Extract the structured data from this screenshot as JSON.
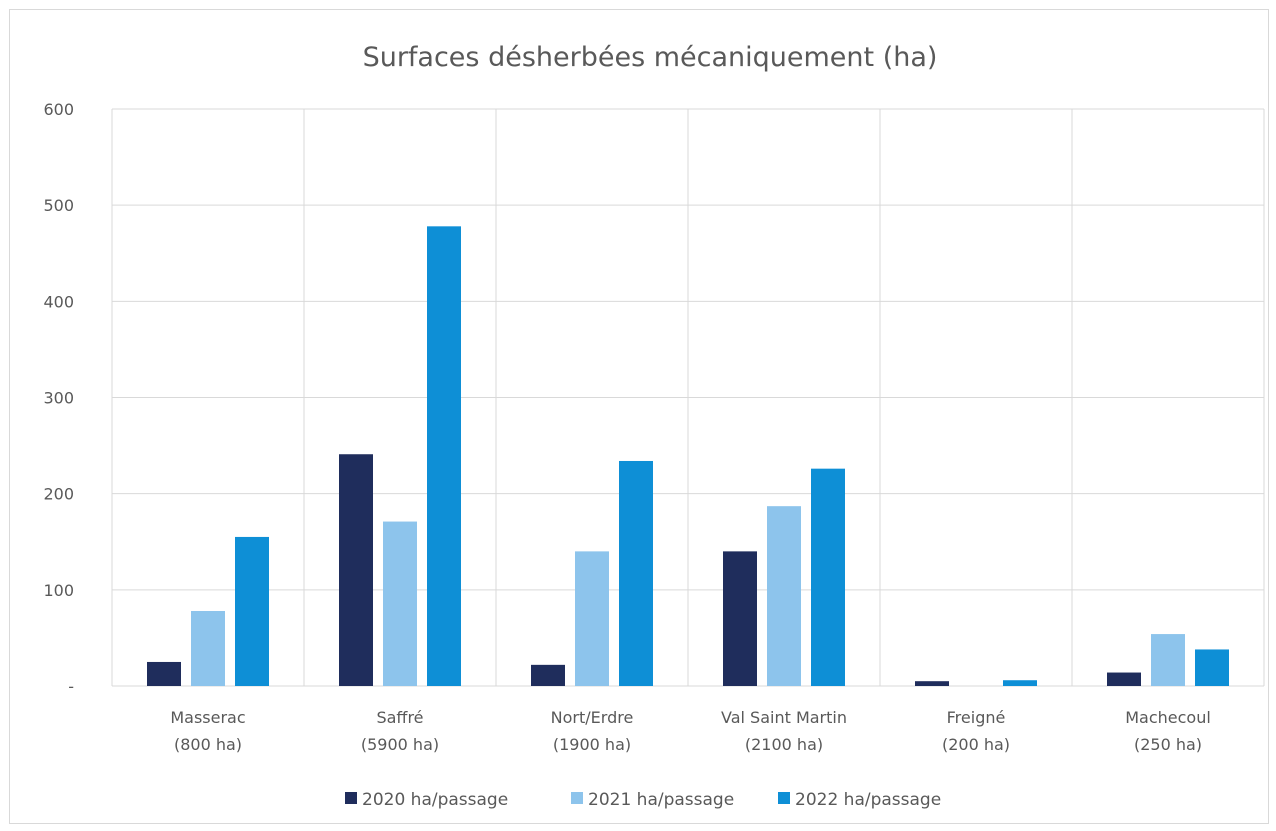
{
  "chart_data": {
    "type": "bar",
    "title": "Surfaces désherbées mécaniquement (ha)",
    "xlabel": "",
    "ylabel": "",
    "categories": [
      [
        "Masserac",
        "(800 ha)"
      ],
      [
        "Saffré",
        "(5900 ha)"
      ],
      [
        "Nort/Erdre",
        "(1900 ha)"
      ],
      [
        "Val Saint Martin",
        "(2100 ha)"
      ],
      [
        "Freigné",
        "(200 ha)"
      ],
      [
        "Machecoul",
        "(250 ha)"
      ]
    ],
    "series": [
      {
        "name": "2020 ha/passage",
        "color": "#1f2d5c",
        "values": [
          25,
          241,
          22,
          140,
          5,
          14
        ]
      },
      {
        "name": "2021 ha/passage",
        "color": "#8dc4ec",
        "values": [
          78,
          171,
          140,
          187,
          0,
          54
        ]
      },
      {
        "name": "2022 ha/passage",
        "color": "#0e8fd6",
        "values": [
          155,
          478,
          234,
          226,
          6,
          38
        ]
      }
    ],
    "ylim": [
      0,
      600
    ],
    "yticks": [
      0,
      100,
      200,
      300,
      400,
      500,
      600
    ],
    "ytick_labels": [
      "-",
      "100",
      "200",
      "300",
      "400",
      "500",
      "600"
    ],
    "grid": true,
    "legend_position": "bottom"
  }
}
